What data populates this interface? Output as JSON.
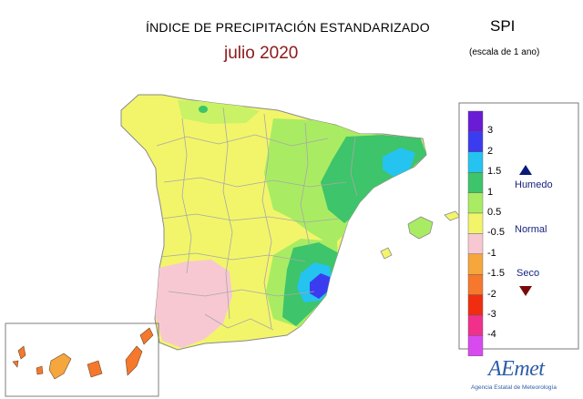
{
  "title": "ÍNDICE DE PRECIPITACIÓN ESTANDARIZADO",
  "subtitle": "julio 2020",
  "index_name": "SPI",
  "scale_note": "(escala de 1 ano)",
  "legend": {
    "bands": [
      {
        "color": "#6a1bd6"
      },
      {
        "color": "#3b3bf0"
      },
      {
        "color": "#25c3ef"
      },
      {
        "color": "#3ec46a"
      },
      {
        "color": "#a9ec63"
      },
      {
        "color": "#f2f56a"
      },
      {
        "color": "#f8c8d2"
      },
      {
        "color": "#f5a63c"
      },
      {
        "color": "#f5782d"
      },
      {
        "color": "#f02d10"
      },
      {
        "color": "#f0308a"
      },
      {
        "color": "#d84af0"
      }
    ],
    "labels": [
      "3",
      "2",
      "1.5",
      "1",
      "0.5",
      "-0.5",
      "-1",
      "-1.5",
      "-2",
      "-3",
      "-4"
    ],
    "categories": {
      "wet": "Humedo",
      "normal": "Normal",
      "dry": "Seco"
    },
    "wet_marker_color": "#0a1a7a",
    "dry_marker_color": "#7a0a0a"
  },
  "logo": {
    "text": "AEmet",
    "caption": "Agencia Estatal de Meteorología"
  },
  "colors": {
    "province_lines": "#a8a8a8",
    "coast": "#8a8a8a"
  }
}
